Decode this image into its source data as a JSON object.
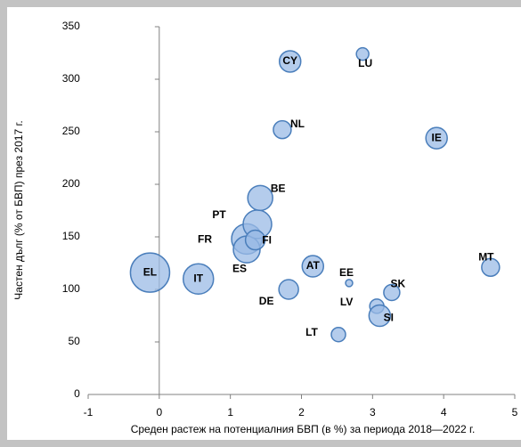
{
  "chart_data": {
    "type": "bubble",
    "x_label": "Среден растеж на потенциалния БВП (в %) за периода 2018—2022 г.",
    "y_label": "Частен дълг (% от БВП) през 2017 г.",
    "labels": [
      "EL",
      "IT",
      "FR",
      "ES",
      "PT",
      "FI",
      "BE",
      "CY",
      "NL",
      "LU",
      "IE",
      "AT",
      "DE",
      "EE",
      "SK",
      "LV",
      "SI",
      "LT",
      "MT"
    ],
    "x": [
      -0.13,
      0.55,
      1.23,
      1.23,
      1.38,
      1.35,
      1.42,
      1.84,
      1.73,
      2.86,
      3.9,
      2.16,
      1.82,
      2.67,
      3.27,
      3.06,
      3.1,
      2.52,
      4.66
    ],
    "y": [
      116,
      110,
      148,
      138,
      162,
      147,
      187,
      317,
      252,
      324,
      244,
      122,
      100,
      106,
      97,
      84,
      75,
      57,
      121
    ],
    "sizes": [
      22,
      17,
      17,
      15,
      16,
      11,
      14,
      12,
      10,
      7,
      12,
      12,
      11,
      4,
      9,
      8,
      12,
      8,
      10
    ],
    "color": "#9bbbe6",
    "edge_color": "#4a7ebb",
    "xlim": [
      -1,
      5
    ],
    "xticks": [
      -1,
      0,
      1,
      2,
      3,
      4,
      5
    ],
    "ylim": [
      0,
      350
    ],
    "yticks": [
      0,
      50,
      100,
      150,
      200,
      250,
      300,
      350
    ]
  }
}
